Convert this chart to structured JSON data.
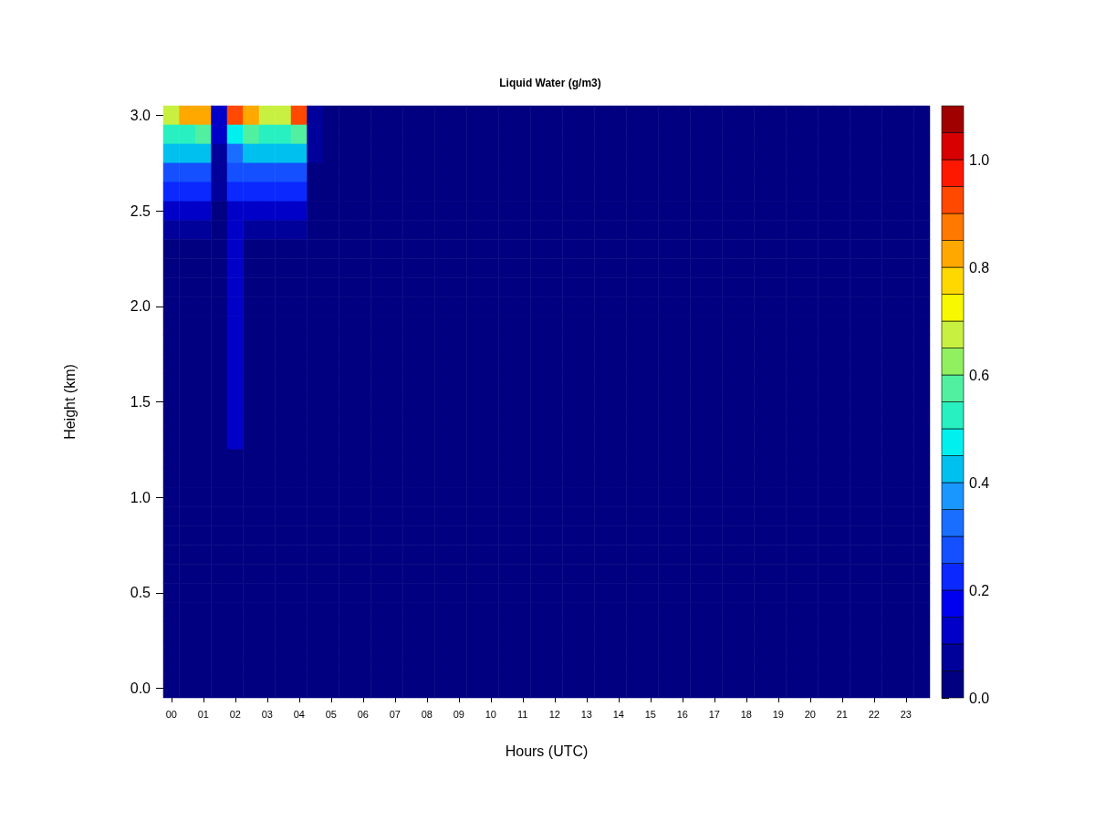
{
  "chart_data": {
    "type": "heatmap",
    "title": "Liquid Water (g/m3)",
    "xlabel": "Hours (UTC)",
    "ylabel": "Height (km)",
    "categories": [
      "00",
      null,
      "01",
      null,
      "02",
      null,
      "03",
      null,
      "04",
      null,
      "05",
      null,
      "06",
      null,
      "07",
      null,
      "08",
      null,
      "09",
      null,
      "10",
      null,
      "11",
      null,
      "12",
      null,
      "13",
      null,
      "14",
      null,
      "15",
      null,
      "16",
      null,
      "17",
      null,
      "18",
      null,
      "19",
      null,
      "20",
      null,
      "21",
      null,
      "22",
      null,
      "23",
      null
    ],
    "y_categories": [
      "3.0",
      null,
      null,
      null,
      null,
      "2.5",
      null,
      null,
      null,
      null,
      "2.0",
      null,
      null,
      null,
      null,
      "1.5",
      null,
      null,
      null,
      null,
      "1.0",
      null,
      null,
      null,
      null,
      "0.5",
      null,
      null,
      null,
      null,
      "0.0"
    ],
    "cells": [
      [
        0.7,
        0.8,
        0.85,
        0.1,
        0.9,
        0.85,
        0.65,
        0.7,
        0.9,
        0.05,
        0,
        0,
        0,
        0,
        0,
        0,
        0,
        0,
        0,
        0,
        0,
        0,
        0,
        0,
        0,
        0,
        0,
        0,
        0,
        0,
        0,
        0,
        0,
        0,
        0,
        0,
        0,
        0,
        0,
        0,
        0,
        0,
        0,
        0,
        0,
        0,
        0,
        0
      ],
      [
        0.5,
        0.5,
        0.55,
        0.1,
        0.45,
        0.55,
        0.5,
        0.5,
        0.55,
        0.05,
        0,
        0,
        0,
        0,
        0,
        0,
        0,
        0,
        0,
        0,
        0,
        0,
        0,
        0,
        0,
        0,
        0,
        0,
        0,
        0,
        0,
        0,
        0,
        0,
        0,
        0,
        0,
        0,
        0,
        0,
        0,
        0,
        0,
        0,
        0,
        0,
        0,
        0
      ],
      [
        0.4,
        0.4,
        0.4,
        0.05,
        0.35,
        0.4,
        0.4,
        0.4,
        0.4,
        0.05,
        0,
        0,
        0,
        0,
        0,
        0,
        0,
        0,
        0,
        0,
        0,
        0,
        0,
        0,
        0,
        0,
        0,
        0,
        0,
        0,
        0,
        0,
        0,
        0,
        0,
        0,
        0,
        0,
        0,
        0,
        0,
        0,
        0,
        0,
        0,
        0,
        0,
        0
      ],
      [
        0.3,
        0.3,
        0.3,
        0.05,
        0.3,
        0.3,
        0.3,
        0.3,
        0.3,
        0,
        0,
        0,
        0,
        0,
        0,
        0,
        0,
        0,
        0,
        0,
        0,
        0,
        0,
        0,
        0,
        0,
        0,
        0,
        0,
        0,
        0,
        0,
        0,
        0,
        0,
        0,
        0,
        0,
        0,
        0,
        0,
        0,
        0,
        0,
        0,
        0,
        0,
        0
      ],
      [
        0.2,
        0.2,
        0.2,
        0.05,
        0.2,
        0.2,
        0.2,
        0.2,
        0.2,
        0,
        0,
        0,
        0,
        0,
        0,
        0,
        0,
        0,
        0,
        0,
        0,
        0,
        0,
        0,
        0,
        0,
        0,
        0,
        0,
        0,
        0,
        0,
        0,
        0,
        0,
        0,
        0,
        0,
        0,
        0,
        0,
        0,
        0,
        0,
        0,
        0,
        0,
        0
      ],
      [
        0.1,
        0.1,
        0.1,
        0,
        0.15,
        0.1,
        0.1,
        0.1,
        0.1,
        0,
        0,
        0,
        0,
        0,
        0,
        0,
        0,
        0,
        0,
        0,
        0,
        0,
        0,
        0,
        0,
        0,
        0,
        0,
        0,
        0,
        0,
        0,
        0,
        0,
        0,
        0,
        0,
        0,
        0,
        0,
        0,
        0,
        0,
        0,
        0,
        0,
        0,
        0
      ],
      [
        0.05,
        0.05,
        0.05,
        0,
        0.1,
        0.05,
        0.05,
        0.05,
        0.05,
        0,
        0,
        0,
        0,
        0,
        0,
        0,
        0,
        0,
        0,
        0,
        0,
        0,
        0,
        0,
        0,
        0,
        0,
        0,
        0,
        0,
        0,
        0,
        0,
        0,
        0,
        0,
        0,
        0,
        0,
        0,
        0,
        0,
        0,
        0,
        0,
        0,
        0,
        0
      ],
      [
        0,
        0,
        0,
        0,
        0.1,
        0,
        0,
        0,
        0,
        0,
        0,
        0,
        0,
        0,
        0,
        0,
        0,
        0,
        0,
        0,
        0,
        0,
        0,
        0,
        0,
        0,
        0,
        0,
        0,
        0,
        0,
        0,
        0,
        0,
        0,
        0,
        0,
        0,
        0,
        0,
        0,
        0,
        0,
        0,
        0,
        0,
        0,
        0
      ],
      [
        0,
        0,
        0,
        0,
        0.1,
        0,
        0,
        0,
        0,
        0,
        0,
        0,
        0,
        0,
        0,
        0,
        0,
        0,
        0,
        0,
        0,
        0,
        0,
        0,
        0,
        0,
        0,
        0,
        0,
        0,
        0,
        0,
        0,
        0,
        0,
        0,
        0,
        0,
        0,
        0,
        0,
        0,
        0,
        0,
        0,
        0,
        0,
        0
      ],
      [
        0,
        0,
        0,
        0,
        0.1,
        0,
        0,
        0,
        0,
        0,
        0,
        0,
        0,
        0,
        0,
        0,
        0,
        0,
        0,
        0,
        0,
        0,
        0,
        0,
        0,
        0,
        0,
        0,
        0,
        0,
        0,
        0,
        0,
        0,
        0,
        0,
        0,
        0,
        0,
        0,
        0,
        0,
        0,
        0,
        0,
        0,
        0,
        0
      ],
      [
        0,
        0,
        0,
        0,
        0.1,
        0,
        0,
        0,
        0,
        0,
        0,
        0,
        0,
        0,
        0,
        0,
        0,
        0,
        0,
        0,
        0,
        0,
        0,
        0,
        0,
        0,
        0,
        0,
        0,
        0,
        0,
        0,
        0,
        0,
        0,
        0,
        0,
        0,
        0,
        0,
        0,
        0,
        0,
        0,
        0,
        0,
        0,
        0
      ],
      [
        0,
        0,
        0,
        0,
        0.1,
        0,
        0,
        0,
        0,
        0,
        0,
        0,
        0,
        0,
        0,
        0,
        0,
        0,
        0,
        0,
        0,
        0,
        0,
        0,
        0,
        0,
        0,
        0,
        0,
        0,
        0,
        0,
        0,
        0,
        0,
        0,
        0,
        0,
        0,
        0,
        0,
        0,
        0,
        0,
        0,
        0,
        0,
        0
      ],
      [
        0,
        0,
        0,
        0,
        0.1,
        0,
        0,
        0,
        0,
        0,
        0,
        0,
        0,
        0,
        0,
        0,
        0,
        0,
        0,
        0,
        0,
        0,
        0,
        0,
        0,
        0,
        0,
        0,
        0,
        0,
        0,
        0,
        0,
        0,
        0,
        0,
        0,
        0,
        0,
        0,
        0,
        0,
        0,
        0,
        0,
        0,
        0,
        0
      ],
      [
        0,
        0,
        0,
        0,
        0.1,
        0,
        0,
        0,
        0,
        0,
        0,
        0,
        0,
        0,
        0,
        0,
        0,
        0,
        0,
        0,
        0,
        0,
        0,
        0,
        0,
        0,
        0,
        0,
        0,
        0,
        0,
        0,
        0,
        0,
        0,
        0,
        0,
        0,
        0,
        0,
        0,
        0,
        0,
        0,
        0,
        0,
        0,
        0
      ],
      [
        0,
        0,
        0,
        0,
        0.1,
        0,
        0,
        0,
        0,
        0,
        0,
        0,
        0,
        0,
        0,
        0,
        0,
        0,
        0,
        0,
        0,
        0,
        0,
        0,
        0,
        0,
        0,
        0,
        0,
        0,
        0,
        0,
        0,
        0,
        0,
        0,
        0,
        0,
        0,
        0,
        0,
        0,
        0,
        0,
        0,
        0,
        0,
        0
      ],
      [
        0,
        0,
        0,
        0,
        0.1,
        0,
        0,
        0,
        0,
        0,
        0,
        0,
        0,
        0,
        0,
        0,
        0,
        0,
        0,
        0,
        0,
        0,
        0,
        0,
        0,
        0,
        0,
        0,
        0,
        0,
        0,
        0,
        0,
        0,
        0,
        0,
        0,
        0,
        0,
        0,
        0,
        0,
        0,
        0,
        0,
        0,
        0,
        0
      ],
      [
        0,
        0,
        0,
        0,
        0.1,
        0,
        0,
        0,
        0,
        0,
        0,
        0,
        0,
        0,
        0,
        0,
        0,
        0,
        0,
        0,
        0,
        0,
        0,
        0,
        0,
        0,
        0,
        0,
        0,
        0,
        0,
        0,
        0,
        0,
        0,
        0,
        0,
        0,
        0,
        0,
        0,
        0,
        0,
        0,
        0,
        0,
        0,
        0
      ],
      [
        0,
        0,
        0,
        0,
        0.1,
        0,
        0,
        0,
        0,
        0,
        0,
        0,
        0,
        0,
        0,
        0,
        0,
        0,
        0,
        0,
        0,
        0,
        0,
        0,
        0,
        0,
        0,
        0,
        0,
        0,
        0,
        0,
        0,
        0,
        0,
        0,
        0,
        0,
        0,
        0,
        0,
        0,
        0,
        0,
        0,
        0,
        0,
        0
      ],
      [
        0,
        0,
        0,
        0,
        0,
        0,
        0,
        0,
        0,
        0,
        0,
        0,
        0,
        0,
        0,
        0,
        0,
        0,
        0,
        0,
        0,
        0,
        0,
        0,
        0,
        0,
        0,
        0,
        0,
        0,
        0,
        0,
        0,
        0,
        0,
        0,
        0,
        0,
        0,
        0,
        0,
        0,
        0,
        0,
        0,
        0,
        0,
        0
      ],
      [
        0,
        0,
        0,
        0,
        0,
        0,
        0,
        0,
        0,
        0,
        0,
        0,
        0,
        0,
        0,
        0,
        0,
        0,
        0,
        0,
        0,
        0,
        0,
        0,
        0,
        0,
        0,
        0,
        0,
        0,
        0,
        0,
        0,
        0,
        0,
        0,
        0,
        0,
        0,
        0,
        0,
        0,
        0,
        0,
        0,
        0,
        0,
        0
      ],
      [
        0,
        0,
        0,
        0,
        0,
        0,
        0,
        0,
        0,
        0,
        0,
        0,
        0,
        0,
        0,
        0,
        0,
        0,
        0,
        0,
        0,
        0,
        0,
        0,
        0,
        0,
        0,
        0,
        0,
        0,
        0,
        0,
        0,
        0,
        0,
        0,
        0,
        0,
        0,
        0,
        0,
        0,
        0,
        0,
        0,
        0,
        0,
        0
      ],
      [
        0,
        0,
        0,
        0,
        0,
        0,
        0,
        0,
        0,
        0,
        0,
        0,
        0,
        0,
        0,
        0,
        0,
        0,
        0,
        0,
        0,
        0,
        0,
        0,
        0,
        0,
        0,
        0,
        0,
        0,
        0,
        0,
        0,
        0,
        0,
        0,
        0,
        0,
        0,
        0,
        0,
        0,
        0,
        0,
        0,
        0,
        0,
        0
      ],
      [
        0,
        0,
        0,
        0,
        0,
        0,
        0,
        0,
        0,
        0,
        0,
        0,
        0,
        0,
        0,
        0,
        0,
        0,
        0,
        0,
        0,
        0,
        0,
        0,
        0,
        0,
        0,
        0,
        0,
        0,
        0,
        0,
        0,
        0,
        0,
        0,
        0,
        0,
        0,
        0,
        0,
        0,
        0,
        0,
        0,
        0,
        0,
        0
      ],
      [
        0,
        0,
        0,
        0,
        0,
        0,
        0,
        0,
        0,
        0,
        0,
        0,
        0,
        0,
        0,
        0,
        0,
        0,
        0,
        0,
        0,
        0,
        0,
        0,
        0,
        0,
        0,
        0,
        0,
        0,
        0,
        0,
        0,
        0,
        0,
        0,
        0,
        0,
        0,
        0,
        0,
        0,
        0,
        0,
        0,
        0,
        0,
        0
      ],
      [
        0,
        0,
        0,
        0,
        0,
        0,
        0,
        0,
        0,
        0,
        0,
        0,
        0,
        0,
        0,
        0,
        0,
        0,
        0,
        0,
        0,
        0,
        0,
        0,
        0,
        0,
        0,
        0,
        0,
        0,
        0,
        0,
        0,
        0,
        0,
        0,
        0,
        0,
        0,
        0,
        0,
        0,
        0,
        0,
        0,
        0,
        0,
        0
      ],
      [
        0,
        0,
        0,
        0,
        0,
        0,
        0,
        0,
        0,
        0,
        0,
        0,
        0,
        0,
        0,
        0,
        0,
        0,
        0,
        0,
        0,
        0,
        0,
        0,
        0,
        0,
        0,
        0,
        0,
        0,
        0,
        0,
        0,
        0,
        0,
        0,
        0,
        0,
        0,
        0,
        0,
        0,
        0,
        0,
        0,
        0,
        0,
        0
      ],
      [
        0,
        0,
        0,
        0,
        0,
        0,
        0,
        0,
        0,
        0,
        0,
        0,
        0,
        0,
        0,
        0,
        0,
        0,
        0,
        0,
        0,
        0,
        0,
        0,
        0,
        0,
        0,
        0,
        0,
        0,
        0,
        0,
        0,
        0,
        0,
        0,
        0,
        0,
        0,
        0,
        0,
        0,
        0,
        0,
        0,
        0,
        0,
        0
      ],
      [
        0,
        0,
        0,
        0,
        0,
        0,
        0,
        0,
        0,
        0,
        0,
        0,
        0,
        0,
        0,
        0,
        0,
        0,
        0,
        0,
        0,
        0,
        0,
        0,
        0,
        0,
        0,
        0,
        0,
        0,
        0,
        0,
        0,
        0,
        0,
        0,
        0,
        0,
        0,
        0,
        0,
        0,
        0,
        0,
        0,
        0,
        0,
        0
      ],
      [
        0,
        0,
        0,
        0,
        0,
        0,
        0,
        0,
        0,
        0,
        0,
        0,
        0,
        0,
        0,
        0,
        0,
        0,
        0,
        0,
        0,
        0,
        0,
        0,
        0,
        0,
        0,
        0,
        0,
        0,
        0,
        0,
        0,
        0,
        0,
        0,
        0,
        0,
        0,
        0,
        0,
        0,
        0,
        0,
        0,
        0,
        0,
        0
      ],
      [
        0,
        0,
        0,
        0,
        0,
        0,
        0,
        0,
        0,
        0,
        0,
        0,
        0,
        0,
        0,
        0,
        0,
        0,
        0,
        0,
        0,
        0,
        0,
        0,
        0,
        0,
        0,
        0,
        0,
        0,
        0,
        0,
        0,
        0,
        0,
        0,
        0,
        0,
        0,
        0,
        0,
        0,
        0,
        0,
        0,
        0,
        0,
        0
      ],
      [
        0,
        0,
        0,
        0,
        0,
        0,
        0,
        0,
        0,
        0,
        0,
        0,
        0,
        0,
        0,
        0,
        0,
        0,
        0,
        0,
        0,
        0,
        0,
        0,
        0,
        0,
        0,
        0,
        0,
        0,
        0,
        0,
        0,
        0,
        0,
        0,
        0,
        0,
        0,
        0,
        0,
        0,
        0,
        0,
        0,
        0,
        0,
        0
      ]
    ],
    "clim": [
      0,
      1.1
    ],
    "cticks": [
      {
        "value": 0,
        "label": "0.0"
      },
      {
        "value": 0.2,
        "label": "0.2"
      },
      {
        "value": 0.4,
        "label": "0.4"
      },
      {
        "value": 0.6,
        "label": "0.6"
      },
      {
        "value": 0.8,
        "label": "0.8"
      },
      {
        "value": 1,
        "label": "1.0"
      }
    ],
    "colors": [
      "#000080",
      "#00009b",
      "#0000c8",
      "#0000f0",
      "#0a28ff",
      "#1450ff",
      "#1a6eff",
      "#1a96ff",
      "#00c0f0",
      "#00f0f0",
      "#28f0c0",
      "#50f0a0",
      "#90f060",
      "#c8f040",
      "#f8f800",
      "#ffd800",
      "#ffa800",
      "#ff7800",
      "#ff4800",
      "#ff1800",
      "#d80000",
      "#a00000"
    ]
  }
}
